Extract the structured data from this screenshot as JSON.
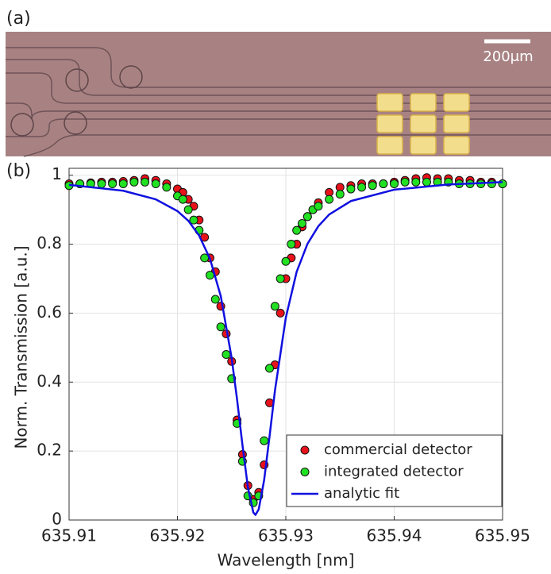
{
  "panel_labels": [
    "(a)",
    "(b)"
  ],
  "micrograph": {
    "scale_bar_label": "200μm"
  },
  "chart_data": {
    "type": "scatter",
    "xlabel": "Wavelength [nm]",
    "ylabel": "Norm. Transmission [a.u.]",
    "x": [
      635.91,
      635.911,
      635.912,
      635.913,
      635.914,
      635.915,
      635.916,
      635.917,
      635.918,
      635.919,
      635.92,
      635.9205,
      635.921,
      635.9215,
      635.922,
      635.9225,
      635.923,
      635.9235,
      635.924,
      635.9245,
      635.925,
      635.9255,
      635.926,
      635.9265,
      635.927,
      635.9275,
      635.928,
      635.9285,
      635.929,
      635.9295,
      635.93,
      635.9305,
      635.931,
      635.9315,
      635.932,
      635.9325,
      635.933,
      635.934,
      635.935,
      635.936,
      635.937,
      635.938,
      635.939,
      635.94,
      635.941,
      635.942,
      635.943,
      635.944,
      635.945,
      635.946,
      635.947,
      635.948,
      635.949,
      635.95
    ],
    "series": [
      {
        "name": "commercial detector",
        "color": "#e8121b",
        "values": [
          0.975,
          0.975,
          0.978,
          0.98,
          0.98,
          0.982,
          0.985,
          0.99,
          0.985,
          0.975,
          0.96,
          0.95,
          0.93,
          0.91,
          0.87,
          0.82,
          0.76,
          0.72,
          0.62,
          0.54,
          0.46,
          0.29,
          0.19,
          0.1,
          0.06,
          0.08,
          0.16,
          0.34,
          0.45,
          0.6,
          0.7,
          0.76,
          0.8,
          0.85,
          0.88,
          0.9,
          0.92,
          0.95,
          0.965,
          0.97,
          0.975,
          0.975,
          0.975,
          0.98,
          0.985,
          0.99,
          0.993,
          0.99,
          0.99,
          0.985,
          0.985,
          0.98,
          0.98,
          0.975
        ]
      },
      {
        "name": "integrated detector",
        "color": "#22e022",
        "values": [
          0.97,
          0.975,
          0.975,
          0.975,
          0.975,
          0.975,
          0.98,
          0.98,
          0.975,
          0.965,
          0.94,
          0.93,
          0.9,
          0.87,
          0.84,
          0.76,
          0.71,
          0.64,
          0.56,
          0.48,
          0.41,
          0.28,
          0.17,
          0.07,
          0.05,
          0.07,
          0.23,
          0.44,
          0.62,
          0.7,
          0.75,
          0.8,
          0.84,
          0.86,
          0.88,
          0.9,
          0.91,
          0.93,
          0.945,
          0.96,
          0.965,
          0.97,
          0.975,
          0.975,
          0.98,
          0.98,
          0.98,
          0.98,
          0.98,
          0.975,
          0.975,
          0.975,
          0.975,
          0.975
        ]
      },
      {
        "name": "analytic fit",
        "color": "#1010e0",
        "type": "line",
        "x": [
          635.91,
          635.915,
          635.918,
          635.92,
          635.921,
          635.922,
          635.923,
          635.924,
          635.925,
          635.9255,
          635.926,
          635.9265,
          635.927,
          635.9272,
          635.9275,
          635.928,
          635.9285,
          635.929,
          635.93,
          635.931,
          635.932,
          635.933,
          635.934,
          635.936,
          635.94,
          635.945,
          635.95
        ],
        "values": [
          0.972,
          0.955,
          0.93,
          0.896,
          0.868,
          0.825,
          0.758,
          0.649,
          0.47,
          0.35,
          0.217,
          0.095,
          0.022,
          0.015,
          0.031,
          0.116,
          0.243,
          0.376,
          0.587,
          0.72,
          0.801,
          0.852,
          0.886,
          0.925,
          0.958,
          0.973,
          0.98
        ]
      }
    ],
    "xlim": [
      635.91,
      635.95
    ],
    "xticks": [
      635.91,
      635.92,
      635.93,
      635.94,
      635.95
    ],
    "ylim": [
      0,
      1.02
    ],
    "yticks": [
      0,
      0.2,
      0.4,
      0.6,
      0.8,
      1
    ],
    "grid": true,
    "legend": "lower-right"
  }
}
